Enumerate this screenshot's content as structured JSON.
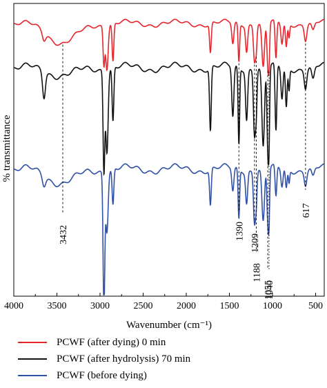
{
  "chart_data": {
    "type": "line",
    "xlabel": "Wavenumber (cm⁻¹)",
    "ylabel": "% transmittance",
    "xlim": [
      4000,
      400
    ],
    "x_reversed": true,
    "xticks": [
      4000,
      3500,
      3000,
      2500,
      2000,
      1500,
      1000,
      500
    ],
    "xtick_labels": [
      "4000",
      "3500",
      "3000",
      "2500",
      "2000",
      "1500",
      "1000",
      "500"
    ],
    "yticks_shown": false,
    "grid": false,
    "legend_position": "bottom",
    "series": [
      {
        "name": "PCWF (after dying) 0 min",
        "color": "#e8242c",
        "level": 0.0,
        "features": [
          {
            "x": 3650,
            "d": 0.1,
            "w": 18
          },
          {
            "x": 3432,
            "d": 0.28,
            "w": 170
          },
          {
            "x": 2955,
            "d": 0.55,
            "w": 10
          },
          {
            "x": 2920,
            "d": 0.62,
            "w": 14
          },
          {
            "x": 2850,
            "d": 0.55,
            "w": 10
          },
          {
            "x": 1720,
            "d": 0.42,
            "w": 10
          },
          {
            "x": 1460,
            "d": 0.3,
            "w": 12
          },
          {
            "x": 1390,
            "d": 0.55,
            "w": 9
          },
          {
            "x": 1300,
            "d": 0.38,
            "w": 12
          },
          {
            "x": 1209,
            "d": 0.5,
            "w": 12
          },
          {
            "x": 1188,
            "d": 0.3,
            "w": 9
          },
          {
            "x": 1108,
            "d": 0.65,
            "w": 15
          },
          {
            "x": 1055,
            "d": 0.58,
            "w": 10
          },
          {
            "x": 1040,
            "d": 0.5,
            "w": 8
          },
          {
            "x": 960,
            "d": 0.55,
            "w": 10
          },
          {
            "x": 890,
            "d": 0.3,
            "w": 12
          },
          {
            "x": 840,
            "d": 0.35,
            "w": 10
          },
          {
            "x": 808,
            "d": 0.2,
            "w": 8
          },
          {
            "x": 617,
            "d": 0.22,
            "w": 14
          },
          {
            "x": 530,
            "d": 0.12,
            "w": 16
          }
        ]
      },
      {
        "name": "PCWF (after hydrolysis) 70 min",
        "color": "#111111",
        "level": 0.0,
        "features": [
          {
            "x": 3650,
            "d": 0.28,
            "w": 16
          },
          {
            "x": 3432,
            "d": 0.08,
            "w": 170
          },
          {
            "x": 2955,
            "d": 1.1,
            "w": 10
          },
          {
            "x": 2920,
            "d": 0.9,
            "w": 14
          },
          {
            "x": 2850,
            "d": 0.6,
            "w": 10
          },
          {
            "x": 1720,
            "d": 0.7,
            "w": 10
          },
          {
            "x": 1460,
            "d": 0.55,
            "w": 12
          },
          {
            "x": 1390,
            "d": 0.85,
            "w": 9
          },
          {
            "x": 1300,
            "d": 0.55,
            "w": 12
          },
          {
            "x": 1209,
            "d": 0.7,
            "w": 12
          },
          {
            "x": 1188,
            "d": 0.4,
            "w": 9
          },
          {
            "x": 1108,
            "d": 0.9,
            "w": 15
          },
          {
            "x": 1055,
            "d": 0.85,
            "w": 10
          },
          {
            "x": 1040,
            "d": 0.7,
            "w": 8
          },
          {
            "x": 960,
            "d": 0.75,
            "w": 10
          },
          {
            "x": 890,
            "d": 0.35,
            "w": 12
          },
          {
            "x": 840,
            "d": 0.45,
            "w": 10
          },
          {
            "x": 808,
            "d": 0.25,
            "w": 8
          },
          {
            "x": 617,
            "d": 0.2,
            "w": 14
          },
          {
            "x": 530,
            "d": 0.15,
            "w": 16
          }
        ]
      },
      {
        "name": "PCWF (before dying)",
        "color": "#3050a8",
        "level": 0.0,
        "features": [
          {
            "x": 3650,
            "d": 0.1,
            "w": 18
          },
          {
            "x": 3432,
            "d": 0.15,
            "w": 170
          },
          {
            "x": 2955,
            "d": 1.5,
            "w": 10
          },
          {
            "x": 2920,
            "d": 0.65,
            "w": 14
          },
          {
            "x": 2850,
            "d": 0.4,
            "w": 10
          },
          {
            "x": 1720,
            "d": 0.4,
            "w": 10
          },
          {
            "x": 1460,
            "d": 0.25,
            "w": 12
          },
          {
            "x": 1390,
            "d": 0.55,
            "w": 9
          },
          {
            "x": 1300,
            "d": 0.35,
            "w": 12
          },
          {
            "x": 1209,
            "d": 0.55,
            "w": 12
          },
          {
            "x": 1188,
            "d": 0.3,
            "w": 9
          },
          {
            "x": 1108,
            "d": 0.6,
            "w": 15
          },
          {
            "x": 1055,
            "d": 0.55,
            "w": 10
          },
          {
            "x": 1040,
            "d": 0.5,
            "w": 8
          },
          {
            "x": 960,
            "d": 0.35,
            "w": 10
          },
          {
            "x": 890,
            "d": 0.2,
            "w": 12
          },
          {
            "x": 840,
            "d": 0.22,
            "w": 10
          },
          {
            "x": 808,
            "d": 0.15,
            "w": 8
          },
          {
            "x": 617,
            "d": 0.15,
            "w": 14
          },
          {
            "x": 530,
            "d": 0.1,
            "w": 16
          }
        ]
      }
    ],
    "annotations": [
      {
        "text": "3432",
        "x": 3432,
        "series": 0,
        "style": "dashed"
      },
      {
        "text": "1390",
        "x": 1390,
        "series": 0,
        "style": "dashed"
      },
      {
        "text": "1209",
        "x": 1209,
        "series": 0,
        "style": "dashed"
      },
      {
        "text": "1188",
        "x": 1188,
        "series": 0,
        "style": "dashed"
      },
      {
        "text": "1055",
        "x": 1055,
        "series": 0,
        "style": "dashed"
      },
      {
        "text": "1040",
        "x": 1040,
        "series": 0,
        "style": "dotted"
      },
      {
        "text": "617",
        "x": 617,
        "series": 0,
        "style": "dashed"
      }
    ]
  }
}
